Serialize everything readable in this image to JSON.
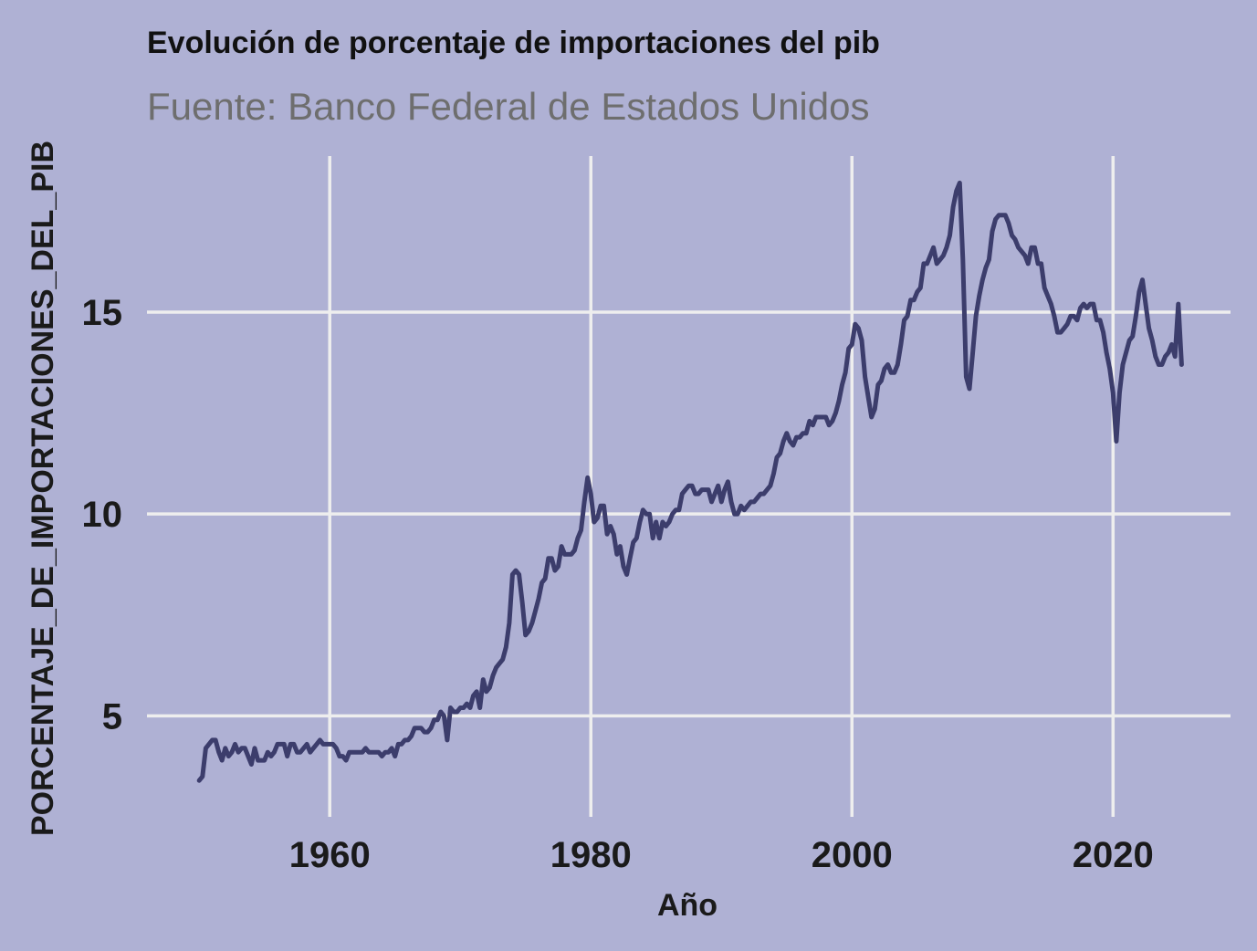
{
  "chart_data": {
    "type": "line",
    "title": "Evolución de porcentaje de importaciones del pib",
    "subtitle": "Fuente: Banco Federal de Estados Unidos",
    "xlabel": "Año",
    "ylabel": "PORCENTAJE_DE_IMPORTACIONES_DEL_PIB",
    "xlim": [
      1946,
      2029
    ],
    "ylim": [
      2.5,
      19
    ],
    "x_ticks": [
      1960,
      1980,
      2000,
      2020
    ],
    "y_ticks": [
      5,
      10,
      15
    ],
    "grid": true,
    "legend": "none",
    "line_color": "#3C3D6C",
    "background_color": "#AFB1D4",
    "grid_color": "#EEEEEE",
    "series": [
      {
        "points": [
          [
            1950.0,
            3.4
          ],
          [
            1950.25,
            3.5
          ],
          [
            1950.5,
            4.2
          ],
          [
            1950.75,
            4.3
          ],
          [
            1951.0,
            4.4
          ],
          [
            1951.25,
            4.4
          ],
          [
            1951.5,
            4.1
          ],
          [
            1951.75,
            3.9
          ],
          [
            1952.0,
            4.2
          ],
          [
            1952.25,
            4.0
          ],
          [
            1952.5,
            4.1
          ],
          [
            1952.75,
            4.3
          ],
          [
            1953.0,
            4.1
          ],
          [
            1953.25,
            4.2
          ],
          [
            1953.5,
            4.2
          ],
          [
            1953.75,
            4.0
          ],
          [
            1954.0,
            3.8
          ],
          [
            1954.25,
            4.2
          ],
          [
            1954.5,
            3.9
          ],
          [
            1954.75,
            3.9
          ],
          [
            1955.0,
            3.9
          ],
          [
            1955.25,
            4.1
          ],
          [
            1955.5,
            4.0
          ],
          [
            1955.75,
            4.1
          ],
          [
            1956.0,
            4.3
          ],
          [
            1956.25,
            4.3
          ],
          [
            1956.5,
            4.3
          ],
          [
            1956.75,
            4.0
          ],
          [
            1957.0,
            4.3
          ],
          [
            1957.25,
            4.3
          ],
          [
            1957.5,
            4.1
          ],
          [
            1957.75,
            4.1
          ],
          [
            1958.0,
            4.2
          ],
          [
            1958.25,
            4.3
          ],
          [
            1958.5,
            4.1
          ],
          [
            1958.75,
            4.2
          ],
          [
            1959.0,
            4.3
          ],
          [
            1959.25,
            4.4
          ],
          [
            1959.5,
            4.3
          ],
          [
            1959.75,
            4.3
          ],
          [
            1960.0,
            4.3
          ],
          [
            1960.25,
            4.3
          ],
          [
            1960.5,
            4.2
          ],
          [
            1960.75,
            4.0
          ],
          [
            1961.0,
            4.0
          ],
          [
            1961.25,
            3.9
          ],
          [
            1961.5,
            4.1
          ],
          [
            1961.75,
            4.1
          ],
          [
            1962.0,
            4.1
          ],
          [
            1962.25,
            4.1
          ],
          [
            1962.5,
            4.1
          ],
          [
            1962.75,
            4.2
          ],
          [
            1963.0,
            4.1
          ],
          [
            1963.25,
            4.1
          ],
          [
            1963.5,
            4.1
          ],
          [
            1963.75,
            4.1
          ],
          [
            1964.0,
            4.0
          ],
          [
            1964.25,
            4.1
          ],
          [
            1964.5,
            4.1
          ],
          [
            1964.75,
            4.2
          ],
          [
            1965.0,
            4.0
          ],
          [
            1965.25,
            4.3
          ],
          [
            1965.5,
            4.3
          ],
          [
            1965.75,
            4.4
          ],
          [
            1966.0,
            4.4
          ],
          [
            1966.25,
            4.5
          ],
          [
            1966.5,
            4.7
          ],
          [
            1966.75,
            4.7
          ],
          [
            1967.0,
            4.7
          ],
          [
            1967.25,
            4.6
          ],
          [
            1967.5,
            4.6
          ],
          [
            1967.75,
            4.7
          ],
          [
            1968.0,
            4.9
          ],
          [
            1968.25,
            4.9
          ],
          [
            1968.5,
            5.1
          ],
          [
            1968.75,
            5.0
          ],
          [
            1969.0,
            4.4
          ],
          [
            1969.25,
            5.2
          ],
          [
            1969.5,
            5.1
          ],
          [
            1969.75,
            5.1
          ],
          [
            1970.0,
            5.2
          ],
          [
            1970.25,
            5.2
          ],
          [
            1970.5,
            5.3
          ],
          [
            1970.75,
            5.2
          ],
          [
            1971.0,
            5.5
          ],
          [
            1971.25,
            5.6
          ],
          [
            1971.5,
            5.2
          ],
          [
            1971.75,
            5.9
          ],
          [
            1972.0,
            5.6
          ],
          [
            1972.25,
            5.7
          ],
          [
            1972.5,
            6.0
          ],
          [
            1972.75,
            6.2
          ],
          [
            1973.0,
            6.3
          ],
          [
            1973.25,
            6.4
          ],
          [
            1973.5,
            6.7
          ],
          [
            1973.75,
            7.3
          ],
          [
            1974.0,
            8.5
          ],
          [
            1974.25,
            8.6
          ],
          [
            1974.5,
            8.5
          ],
          [
            1974.75,
            7.8
          ],
          [
            1975.0,
            7.0
          ],
          [
            1975.25,
            7.1
          ],
          [
            1975.5,
            7.3
          ],
          [
            1975.75,
            7.6
          ],
          [
            1976.0,
            7.9
          ],
          [
            1976.25,
            8.3
          ],
          [
            1976.5,
            8.4
          ],
          [
            1976.75,
            8.9
          ],
          [
            1977.0,
            8.9
          ],
          [
            1977.25,
            8.6
          ],
          [
            1977.5,
            8.7
          ],
          [
            1977.75,
            9.2
          ],
          [
            1978.0,
            9.0
          ],
          [
            1978.25,
            9.0
          ],
          [
            1978.5,
            9.0
          ],
          [
            1978.75,
            9.1
          ],
          [
            1979.0,
            9.4
          ],
          [
            1979.25,
            9.6
          ],
          [
            1979.5,
            10.3
          ],
          [
            1979.75,
            10.9
          ],
          [
            1980.0,
            10.5
          ],
          [
            1980.25,
            9.8
          ],
          [
            1980.5,
            9.9
          ],
          [
            1980.75,
            10.2
          ],
          [
            1981.0,
            10.2
          ],
          [
            1981.25,
            9.5
          ],
          [
            1981.5,
            9.7
          ],
          [
            1981.75,
            9.5
          ],
          [
            1982.0,
            9.0
          ],
          [
            1982.25,
            9.2
          ],
          [
            1982.5,
            8.7
          ],
          [
            1982.75,
            8.5
          ],
          [
            1983.0,
            8.9
          ],
          [
            1983.25,
            9.3
          ],
          [
            1983.5,
            9.4
          ],
          [
            1983.75,
            9.8
          ],
          [
            1984.0,
            10.1
          ],
          [
            1984.25,
            10.0
          ],
          [
            1984.5,
            10.0
          ],
          [
            1984.75,
            9.4
          ],
          [
            1985.0,
            9.8
          ],
          [
            1985.25,
            9.4
          ],
          [
            1985.5,
            9.8
          ],
          [
            1985.75,
            9.7
          ],
          [
            1986.0,
            9.8
          ],
          [
            1986.25,
            10.0
          ],
          [
            1986.5,
            10.1
          ],
          [
            1986.75,
            10.1
          ],
          [
            1987.0,
            10.5
          ],
          [
            1987.25,
            10.6
          ],
          [
            1987.5,
            10.7
          ],
          [
            1987.75,
            10.7
          ],
          [
            1988.0,
            10.5
          ],
          [
            1988.25,
            10.5
          ],
          [
            1988.5,
            10.6
          ],
          [
            1988.75,
            10.6
          ],
          [
            1989.0,
            10.6
          ],
          [
            1989.25,
            10.3
          ],
          [
            1989.5,
            10.5
          ],
          [
            1989.75,
            10.7
          ],
          [
            1990.0,
            10.3
          ],
          [
            1990.25,
            10.6
          ],
          [
            1990.5,
            10.8
          ],
          [
            1990.75,
            10.3
          ],
          [
            1991.0,
            10.0
          ],
          [
            1991.25,
            10.0
          ],
          [
            1991.5,
            10.2
          ],
          [
            1991.75,
            10.1
          ],
          [
            1992.0,
            10.2
          ],
          [
            1992.25,
            10.3
          ],
          [
            1992.5,
            10.3
          ],
          [
            1992.75,
            10.4
          ],
          [
            1993.0,
            10.5
          ],
          [
            1993.25,
            10.5
          ],
          [
            1993.5,
            10.6
          ],
          [
            1993.75,
            10.7
          ],
          [
            1994.0,
            11.0
          ],
          [
            1994.25,
            11.4
          ],
          [
            1994.5,
            11.5
          ],
          [
            1994.75,
            11.8
          ],
          [
            1995.0,
            12.0
          ],
          [
            1995.25,
            11.8
          ],
          [
            1995.5,
            11.7
          ],
          [
            1995.75,
            11.9
          ],
          [
            1996.0,
            11.9
          ],
          [
            1996.25,
            12.0
          ],
          [
            1996.5,
            12.0
          ],
          [
            1996.75,
            12.3
          ],
          [
            1997.0,
            12.2
          ],
          [
            1997.25,
            12.4
          ],
          [
            1997.5,
            12.4
          ],
          [
            1997.75,
            12.4
          ],
          [
            1998.0,
            12.4
          ],
          [
            1998.25,
            12.2
          ],
          [
            1998.5,
            12.3
          ],
          [
            1998.75,
            12.5
          ],
          [
            1999.0,
            12.8
          ],
          [
            1999.25,
            13.2
          ],
          [
            1999.5,
            13.5
          ],
          [
            1999.75,
            14.1
          ],
          [
            2000.0,
            14.2
          ],
          [
            2000.25,
            14.7
          ],
          [
            2000.5,
            14.6
          ],
          [
            2000.75,
            14.3
          ],
          [
            2001.0,
            13.4
          ],
          [
            2001.25,
            12.9
          ],
          [
            2001.5,
            12.4
          ],
          [
            2001.75,
            12.6
          ],
          [
            2002.0,
            13.2
          ],
          [
            2002.25,
            13.3
          ],
          [
            2002.5,
            13.6
          ],
          [
            2002.75,
            13.7
          ],
          [
            2003.0,
            13.5
          ],
          [
            2003.25,
            13.5
          ],
          [
            2003.5,
            13.7
          ],
          [
            2003.75,
            14.2
          ],
          [
            2004.0,
            14.8
          ],
          [
            2004.25,
            14.9
          ],
          [
            2004.5,
            15.3
          ],
          [
            2004.75,
            15.3
          ],
          [
            2005.0,
            15.5
          ],
          [
            2005.25,
            15.6
          ],
          [
            2005.5,
            16.2
          ],
          [
            2005.75,
            16.2
          ],
          [
            2006.0,
            16.4
          ],
          [
            2006.25,
            16.6
          ],
          [
            2006.5,
            16.2
          ],
          [
            2006.75,
            16.3
          ],
          [
            2007.0,
            16.4
          ],
          [
            2007.25,
            16.6
          ],
          [
            2007.5,
            16.9
          ],
          [
            2007.75,
            17.6
          ],
          [
            2008.0,
            18.0
          ],
          [
            2008.25,
            18.2
          ],
          [
            2008.5,
            16.3
          ],
          [
            2008.75,
            13.4
          ],
          [
            2009.0,
            13.1
          ],
          [
            2009.25,
            14.0
          ],
          [
            2009.5,
            14.9
          ],
          [
            2009.75,
            15.4
          ],
          [
            2010.0,
            15.8
          ],
          [
            2010.25,
            16.1
          ],
          [
            2010.5,
            16.3
          ],
          [
            2010.75,
            17.0
          ],
          [
            2011.0,
            17.3
          ],
          [
            2011.25,
            17.4
          ],
          [
            2011.5,
            17.4
          ],
          [
            2011.75,
            17.4
          ],
          [
            2012.0,
            17.2
          ],
          [
            2012.25,
            16.9
          ],
          [
            2012.5,
            16.8
          ],
          [
            2012.75,
            16.6
          ],
          [
            2013.0,
            16.5
          ],
          [
            2013.25,
            16.4
          ],
          [
            2013.5,
            16.2
          ],
          [
            2013.75,
            16.6
          ],
          [
            2014.0,
            16.6
          ],
          [
            2014.25,
            16.2
          ],
          [
            2014.5,
            16.2
          ],
          [
            2014.75,
            15.6
          ],
          [
            2015.0,
            15.4
          ],
          [
            2015.25,
            15.2
          ],
          [
            2015.5,
            14.9
          ],
          [
            2015.75,
            14.5
          ],
          [
            2016.0,
            14.5
          ],
          [
            2016.25,
            14.6
          ],
          [
            2016.5,
            14.7
          ],
          [
            2016.75,
            14.9
          ],
          [
            2017.0,
            14.9
          ],
          [
            2017.25,
            14.8
          ],
          [
            2017.5,
            15.1
          ],
          [
            2017.75,
            15.2
          ],
          [
            2018.0,
            15.1
          ],
          [
            2018.25,
            15.2
          ],
          [
            2018.5,
            15.2
          ],
          [
            2018.75,
            14.8
          ],
          [
            2019.0,
            14.8
          ],
          [
            2019.25,
            14.5
          ],
          [
            2019.5,
            14.0
          ],
          [
            2019.75,
            13.6
          ],
          [
            2020.0,
            13.0
          ],
          [
            2020.25,
            11.8
          ],
          [
            2020.5,
            13.0
          ],
          [
            2020.75,
            13.7
          ],
          [
            2021.0,
            14.0
          ],
          [
            2021.25,
            14.3
          ],
          [
            2021.5,
            14.4
          ],
          [
            2021.75,
            14.9
          ],
          [
            2022.0,
            15.5
          ],
          [
            2022.25,
            15.8
          ],
          [
            2022.5,
            15.2
          ],
          [
            2022.75,
            14.6
          ],
          [
            2023.0,
            14.3
          ],
          [
            2023.25,
            13.9
          ],
          [
            2023.5,
            13.7
          ],
          [
            2023.75,
            13.7
          ],
          [
            2024.0,
            13.9
          ],
          [
            2024.25,
            14.0
          ],
          [
            2024.5,
            14.2
          ],
          [
            2024.75,
            13.9
          ],
          [
            2025.0,
            15.2
          ],
          [
            2025.25,
            13.7
          ]
        ]
      }
    ]
  }
}
